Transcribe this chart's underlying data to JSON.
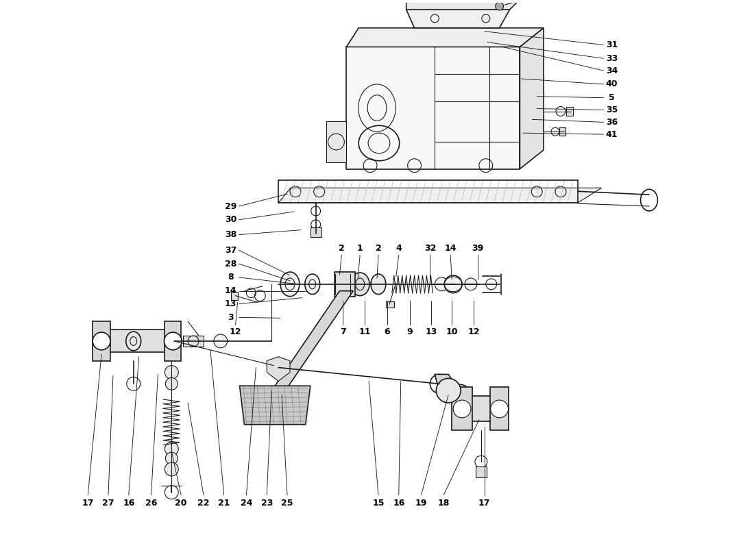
{
  "background_color": "#ffffff",
  "line_color": "#1a1a1a",
  "text_color": "#000000",
  "fig_width": 11.0,
  "fig_height": 8.0,
  "dpi": 100,
  "right_labels": [
    [
      "31",
      8.75,
      7.38
    ],
    [
      "33",
      8.75,
      7.18
    ],
    [
      "34",
      8.75,
      7.0
    ],
    [
      "40",
      8.75,
      6.8
    ],
    [
      "5",
      8.75,
      6.6
    ],
    [
      "35",
      8.75,
      6.42
    ],
    [
      "36",
      8.75,
      6.24
    ],
    [
      "41",
      8.75,
      6.06
    ]
  ],
  "left_labels": [
    [
      "29",
      3.55,
      5.0
    ],
    [
      "30",
      3.55,
      4.8
    ],
    [
      "38",
      3.55,
      4.58
    ],
    [
      "37",
      3.55,
      4.35
    ],
    [
      "28",
      3.55,
      4.15
    ],
    [
      "8",
      3.55,
      3.95
    ],
    [
      "14",
      3.55,
      3.75
    ],
    [
      "13",
      3.55,
      3.56
    ],
    [
      "3",
      3.55,
      3.36
    ]
  ],
  "top_mid_labels": [
    [
      "2",
      4.98,
      4.38
    ],
    [
      "1",
      5.25,
      4.38
    ],
    [
      "2",
      5.52,
      4.38
    ],
    [
      "4",
      5.82,
      4.38
    ],
    [
      "32",
      6.28,
      4.38
    ],
    [
      "14",
      6.58,
      4.38
    ],
    [
      "39",
      6.98,
      4.38
    ]
  ],
  "bot_mid_labels": [
    [
      "12",
      3.42,
      3.15
    ],
    [
      "7",
      5.0,
      3.15
    ],
    [
      "11",
      5.32,
      3.15
    ],
    [
      "6",
      5.65,
      3.15
    ],
    [
      "9",
      5.98,
      3.15
    ],
    [
      "13",
      6.3,
      3.15
    ],
    [
      "10",
      6.6,
      3.15
    ],
    [
      "12",
      6.92,
      3.15
    ]
  ],
  "bottom_labels": [
    [
      "17",
      1.25,
      0.62
    ],
    [
      "27",
      1.55,
      0.62
    ],
    [
      "16",
      1.85,
      0.62
    ],
    [
      "26",
      2.18,
      0.62
    ],
    [
      "20",
      2.62,
      0.62
    ],
    [
      "22",
      2.95,
      0.62
    ],
    [
      "21",
      3.25,
      0.62
    ],
    [
      "24",
      3.58,
      0.62
    ],
    [
      "23",
      3.88,
      0.62
    ],
    [
      "25",
      4.18,
      0.62
    ],
    [
      "15",
      5.52,
      0.62
    ],
    [
      "16",
      5.82,
      0.62
    ],
    [
      "19",
      6.15,
      0.62
    ],
    [
      "18",
      6.48,
      0.62
    ],
    [
      "17",
      7.08,
      0.62
    ]
  ]
}
